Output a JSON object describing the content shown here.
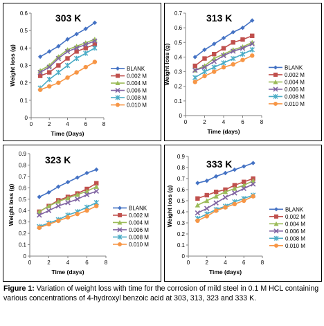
{
  "caption": {
    "label": "Figure 1:",
    "text": "Variation of weight loss with time for the corrosion of mild steel in 0.1 M HCL containing various concentrations of 4-hydroxyl benzoic acid at 303, 313, 323 and 333 K."
  },
  "chart_data": [
    {
      "type": "line",
      "title": "303 K",
      "xlabel": "Time (Days)",
      "ylabel": "Weight loss (g)",
      "xlim": [
        0,
        8
      ],
      "ylim": [
        0,
        0.6
      ],
      "xticks": [
        0,
        2,
        4,
        6,
        8
      ],
      "yticks": [
        0,
        0.1,
        0.2,
        0.3,
        0.4,
        0.5,
        0.6
      ],
      "x": [
        1,
        2,
        3,
        4,
        5,
        6,
        7
      ],
      "legend": "right",
      "series": [
        {
          "name": "BLANK",
          "values": [
            0.35,
            0.38,
            0.41,
            0.45,
            0.48,
            0.51,
            0.545
          ]
        },
        {
          "name": "0.002 M",
          "values": [
            0.24,
            0.26,
            0.3,
            0.34,
            0.38,
            0.4,
            0.42
          ]
        },
        {
          "name": "0.004 M",
          "values": [
            0.27,
            0.3,
            0.35,
            0.39,
            0.41,
            0.43,
            0.45
          ]
        },
        {
          "name": "0.006 M",
          "values": [
            0.26,
            0.29,
            0.34,
            0.38,
            0.4,
            0.42,
            0.44
          ]
        },
        {
          "name": "0.008 M",
          "values": [
            0.17,
            0.22,
            0.26,
            0.3,
            0.34,
            0.37,
            0.4
          ]
        },
        {
          "name": "0.010 M",
          "values": [
            0.16,
            0.18,
            0.2,
            0.23,
            0.26,
            0.29,
            0.32
          ]
        }
      ]
    },
    {
      "type": "line",
      "title": "313 K",
      "xlabel": "Time (days)",
      "ylabel": "Weight loss (g)",
      "xlim": [
        0,
        8
      ],
      "ylim": [
        0,
        0.7
      ],
      "xticks": [
        0,
        2,
        4,
        6,
        8
      ],
      "yticks": [
        0,
        0.1,
        0.2,
        0.3,
        0.4,
        0.5,
        0.6,
        0.7
      ],
      "x": [
        1,
        2,
        3,
        4,
        5,
        6,
        7
      ],
      "legend": "right",
      "series": [
        {
          "name": "BLANK",
          "values": [
            0.4,
            0.45,
            0.49,
            0.53,
            0.57,
            0.6,
            0.65
          ]
        },
        {
          "name": "0.002 M",
          "values": [
            0.34,
            0.39,
            0.42,
            0.46,
            0.5,
            0.52,
            0.545
          ]
        },
        {
          "name": "0.004 M",
          "values": [
            0.31,
            0.34,
            0.39,
            0.42,
            0.45,
            0.47,
            0.5
          ]
        },
        {
          "name": "0.006 M",
          "values": [
            0.31,
            0.33,
            0.37,
            0.41,
            0.44,
            0.46,
            0.49
          ]
        },
        {
          "name": "0.008 M",
          "values": [
            0.26,
            0.3,
            0.33,
            0.36,
            0.39,
            0.42,
            0.45
          ]
        },
        {
          "name": "0.010 M",
          "values": [
            0.23,
            0.27,
            0.3,
            0.33,
            0.35,
            0.38,
            0.41
          ]
        }
      ]
    },
    {
      "type": "line",
      "title": "323 K",
      "xlabel": "Time (days)",
      "ylabel": "Weight loss (g)",
      "xlim": [
        0,
        8
      ],
      "ylim": [
        0,
        0.9
      ],
      "xticks": [
        0,
        2,
        4,
        6,
        8
      ],
      "yticks": [
        0,
        0.1,
        0.2,
        0.3,
        0.4,
        0.5,
        0.6,
        0.7,
        0.8,
        0.9
      ],
      "x": [
        1,
        2,
        3,
        4,
        5,
        6,
        7
      ],
      "legend": "right",
      "series": [
        {
          "name": "BLANK",
          "values": [
            0.52,
            0.56,
            0.61,
            0.65,
            0.69,
            0.73,
            0.76
          ]
        },
        {
          "name": "0.002 M",
          "values": [
            0.39,
            0.44,
            0.49,
            0.52,
            0.55,
            0.59,
            0.64
          ]
        },
        {
          "name": "0.004 M",
          "values": [
            0.39,
            0.44,
            0.48,
            0.51,
            0.54,
            0.57,
            0.61
          ]
        },
        {
          "name": "0.006 M",
          "values": [
            0.36,
            0.4,
            0.44,
            0.47,
            0.5,
            0.54,
            0.57
          ]
        },
        {
          "name": "0.008 M",
          "values": [
            0.26,
            0.29,
            0.32,
            0.36,
            0.39,
            0.43,
            0.47
          ]
        },
        {
          "name": "0.010 M",
          "values": [
            0.25,
            0.28,
            0.31,
            0.34,
            0.37,
            0.4,
            0.44
          ]
        }
      ]
    },
    {
      "type": "line",
      "title": "333 K",
      "xlabel": "Time (days)",
      "ylabel": "Weight loss (g)",
      "xlim": [
        0,
        8
      ],
      "ylim": [
        0,
        0.9
      ],
      "xticks": [
        0,
        2,
        4,
        6,
        8
      ],
      "yticks": [
        0,
        0.1,
        0.2,
        0.3,
        0.4,
        0.5,
        0.6,
        0.7,
        0.8,
        0.9
      ],
      "x": [
        1,
        2,
        3,
        4,
        5,
        6,
        7
      ],
      "legend": "right",
      "series": [
        {
          "name": "BLANK",
          "values": [
            0.66,
            0.68,
            0.72,
            0.75,
            0.78,
            0.81,
            0.84
          ]
        },
        {
          "name": "0.002 M",
          "values": [
            0.52,
            0.55,
            0.58,
            0.6,
            0.64,
            0.67,
            0.7
          ]
        },
        {
          "name": "0.004 M",
          "values": [
            0.46,
            0.5,
            0.54,
            0.58,
            0.61,
            0.64,
            0.68
          ]
        },
        {
          "name": "0.006 M",
          "values": [
            0.39,
            0.43,
            0.48,
            0.53,
            0.57,
            0.61,
            0.65
          ]
        },
        {
          "name": "0.008 M",
          "values": [
            0.34,
            0.38,
            0.42,
            0.45,
            0.49,
            0.52,
            0.55
          ]
        },
        {
          "name": "0.010 M",
          "values": [
            0.32,
            0.36,
            0.41,
            0.44,
            0.47,
            0.5,
            0.54
          ]
        }
      ]
    }
  ],
  "series_styles": [
    {
      "color": "#4472C4",
      "marker": "diamond"
    },
    {
      "color": "#C0504D",
      "marker": "square"
    },
    {
      "color": "#9BBB59",
      "marker": "triangle"
    },
    {
      "color": "#8064A2",
      "marker": "x"
    },
    {
      "color": "#4BACC6",
      "marker": "star"
    },
    {
      "color": "#F79646",
      "marker": "circle"
    }
  ]
}
